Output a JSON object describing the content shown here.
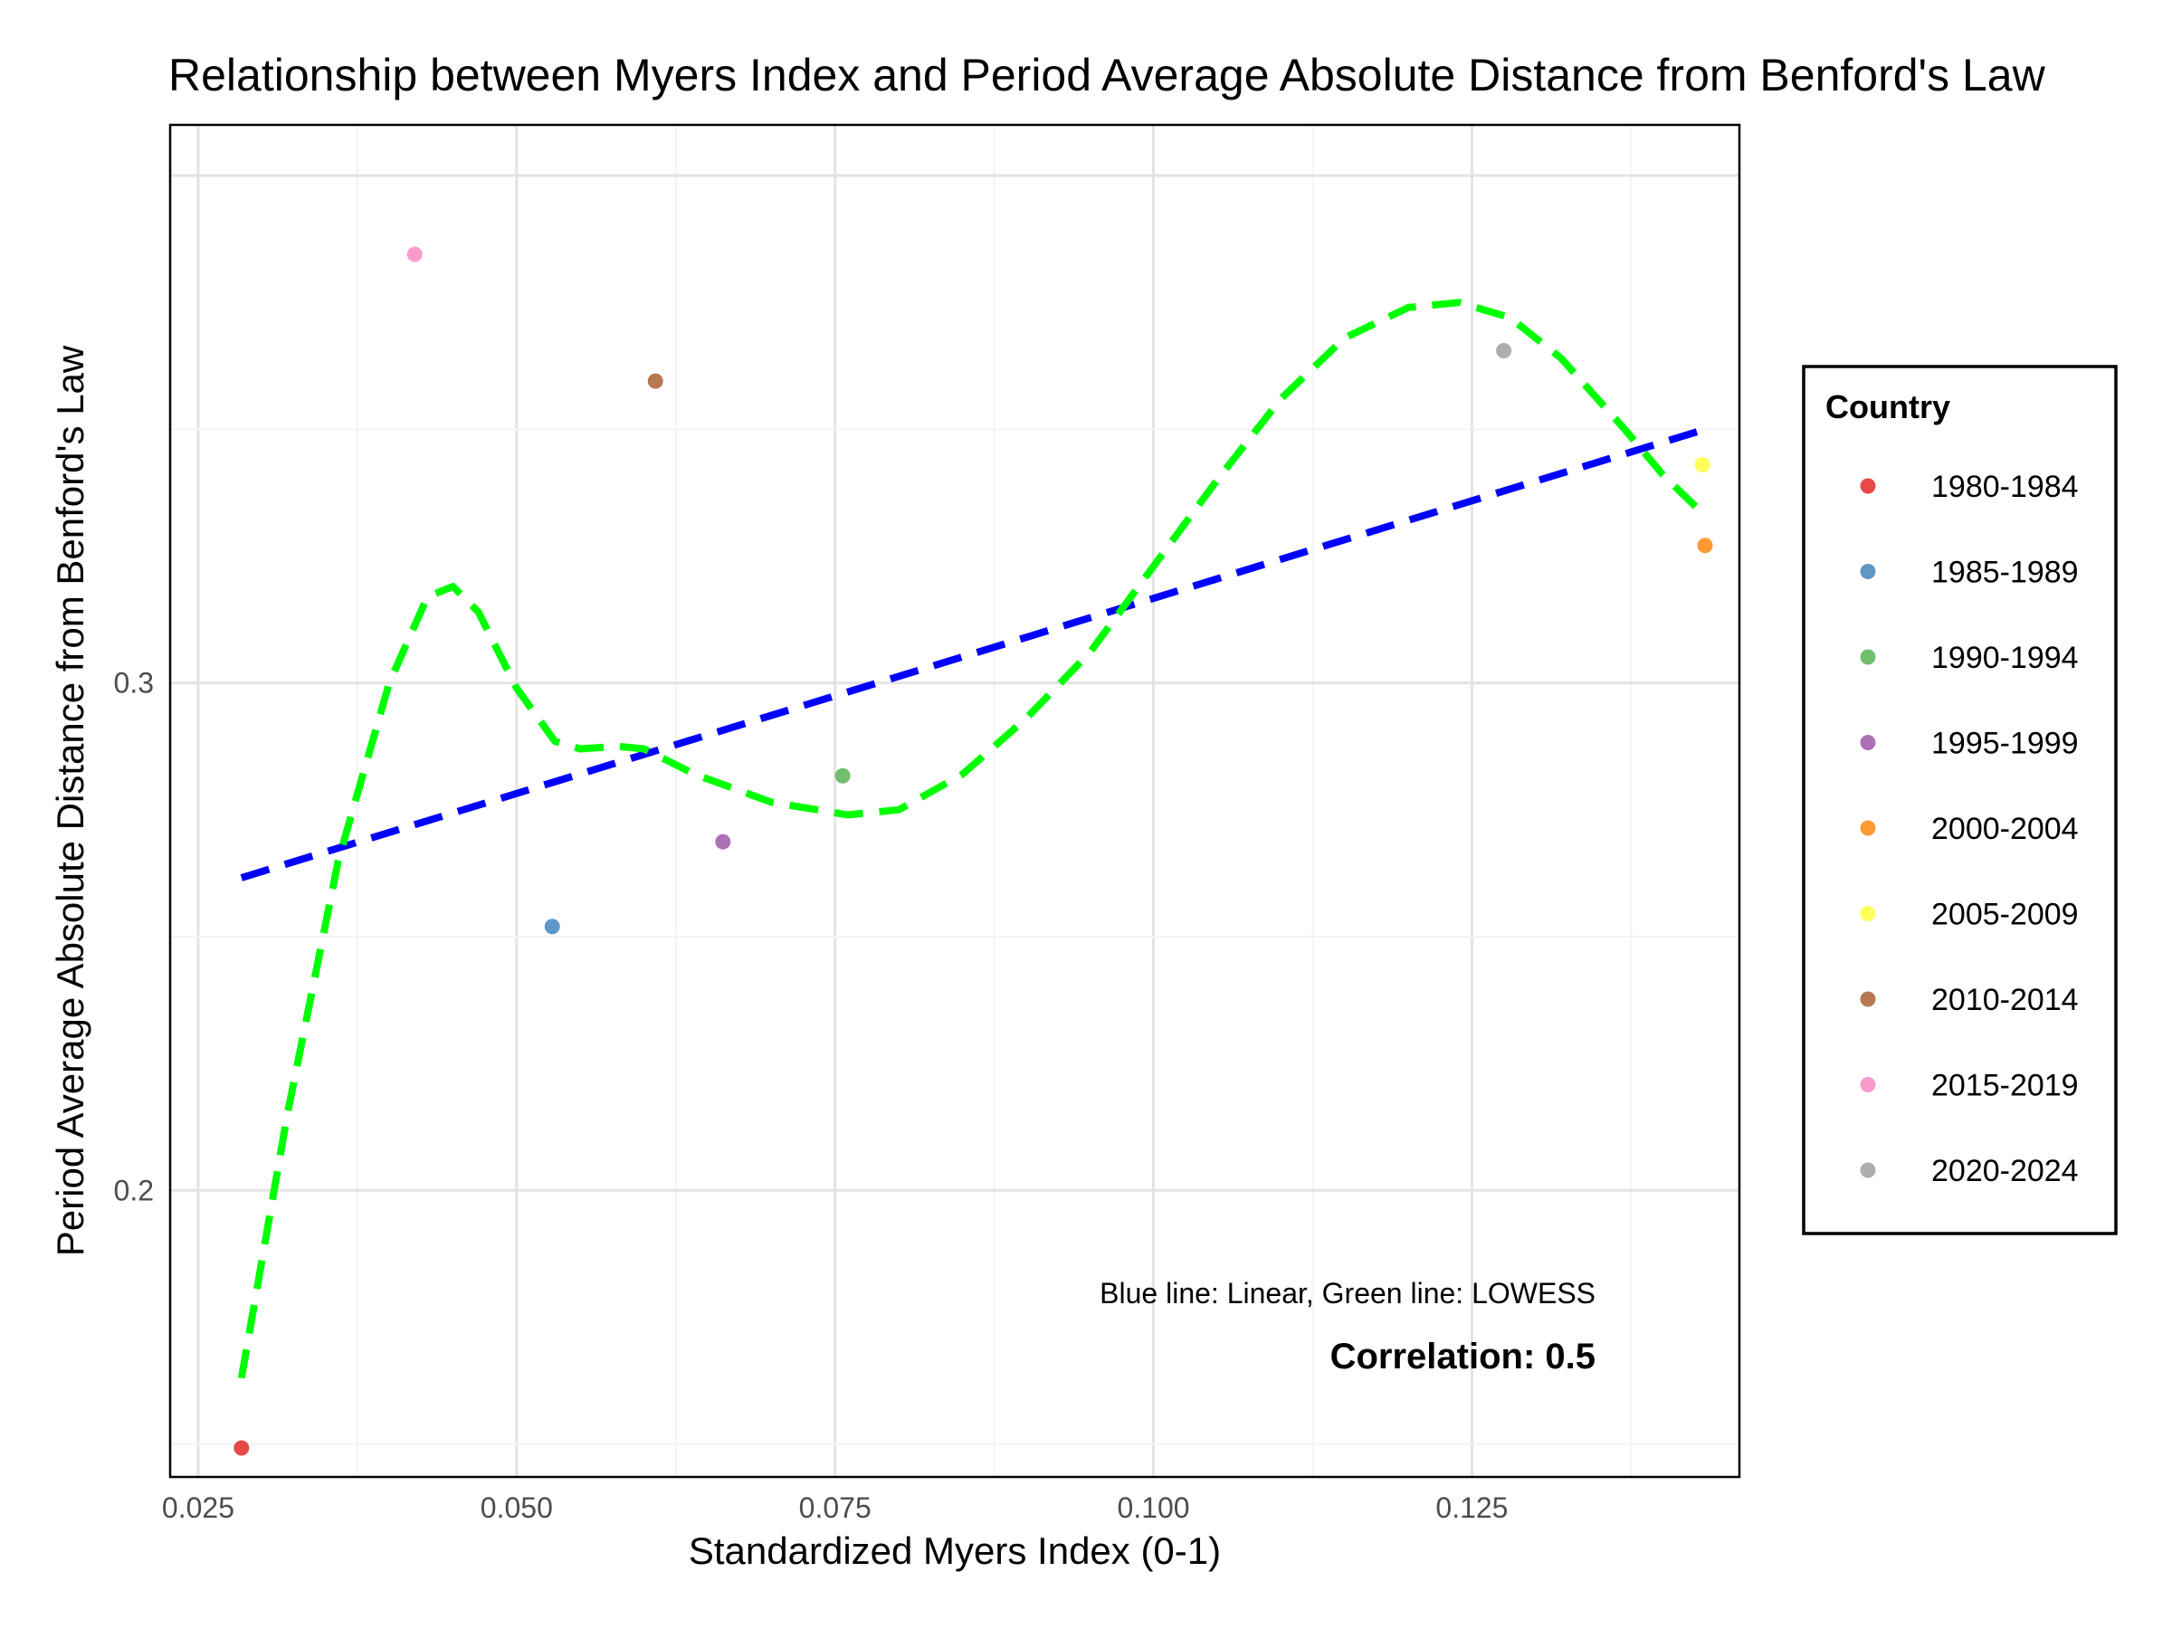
{
  "chart_data": {
    "type": "scatter",
    "title": "Relationship between Myers Index and Period Average Absolute Distance from Benford's Law",
    "xlabel": "Standardized Myers Index (0-1)",
    "ylabel": "Period Average Absolute Distance from Benford's Law",
    "xlim": [
      0.0228,
      0.146
    ],
    "ylim": [
      0.1435,
      0.41
    ],
    "x_ticks": [
      0.025,
      0.05,
      0.075,
      0.1,
      0.125
    ],
    "x_tick_labels": [
      "0.025",
      "0.050",
      "0.075",
      "0.100",
      "0.125"
    ],
    "y_ticks": [
      0.2,
      0.3
    ],
    "y_tick_labels": [
      "0.2",
      "0.3"
    ],
    "grid": true,
    "legend": {
      "title": "Country",
      "position": "right"
    },
    "points": [
      {
        "label": "1980-1984",
        "x": 0.0284,
        "y": 0.1492,
        "color": "#e41a1c"
      },
      {
        "label": "1985-1989",
        "x": 0.0528,
        "y": 0.252,
        "color": "#377eb8"
      },
      {
        "label": "1990-1994",
        "x": 0.0756,
        "y": 0.2817,
        "color": "#4daf4a"
      },
      {
        "label": "1995-1999",
        "x": 0.0662,
        "y": 0.2687,
        "color": "#984ea3"
      },
      {
        "label": "2000-2004",
        "x": 0.1433,
        "y": 0.3271,
        "color": "#ff7f00"
      },
      {
        "label": "2005-2009",
        "x": 0.1431,
        "y": 0.343,
        "color": "#ffff33"
      },
      {
        "label": "2010-2014",
        "x": 0.0609,
        "y": 0.3595,
        "color": "#a65628"
      },
      {
        "label": "2015-2019",
        "x": 0.042,
        "y": 0.3845,
        "color": "#f781bf"
      },
      {
        "label": "2020-2024",
        "x": 0.1275,
        "y": 0.3655,
        "color": "#999999"
      }
    ],
    "lines": [
      {
        "kind": "linear",
        "color": "#0000ff",
        "dash": "dashed",
        "x": [
          0.0284,
          0.1433
        ],
        "y": [
          0.2616,
          0.35
        ]
      },
      {
        "kind": "lowess",
        "color": "#00ff00",
        "dash": "dashed",
        "x": [
          0.0284,
          0.032,
          0.036,
          0.04,
          0.043,
          0.045,
          0.047,
          0.05,
          0.053,
          0.055,
          0.058,
          0.06,
          0.064,
          0.07,
          0.076,
          0.08,
          0.085,
          0.09,
          0.095,
          0.1,
          0.105,
          0.11,
          0.115,
          0.12,
          0.124,
          0.128,
          0.132,
          0.137,
          0.14,
          0.1433
        ],
        "y": [
          0.163,
          0.215,
          0.265,
          0.3,
          0.317,
          0.319,
          0.314,
          0.299,
          0.2885,
          0.287,
          0.2875,
          0.287,
          0.282,
          0.2765,
          0.274,
          0.275,
          0.282,
          0.293,
          0.306,
          0.323,
          0.34,
          0.356,
          0.368,
          0.374,
          0.375,
          0.372,
          0.364,
          0.35,
          0.341,
          0.333
        ]
      }
    ],
    "annotations": {
      "note": "Blue line: Linear, Green line: LOWESS",
      "correlation": "Correlation: 0.5"
    }
  }
}
